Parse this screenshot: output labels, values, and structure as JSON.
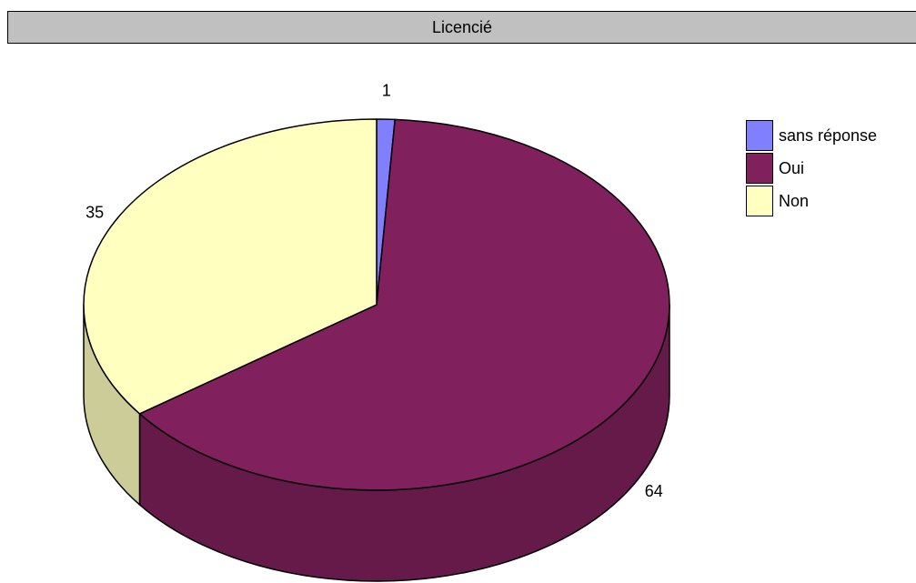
{
  "chart_data": {
    "type": "pie",
    "title": "Licencié",
    "categories": [
      "sans réponse",
      "Oui",
      "Non"
    ],
    "values": [
      1,
      64,
      35
    ],
    "colors": [
      "#8080ff",
      "#80205c",
      "#ffffc0"
    ],
    "side_colors": [
      "#6666cc",
      "#661a4a",
      "#cccc99"
    ],
    "legend_position": "right"
  }
}
